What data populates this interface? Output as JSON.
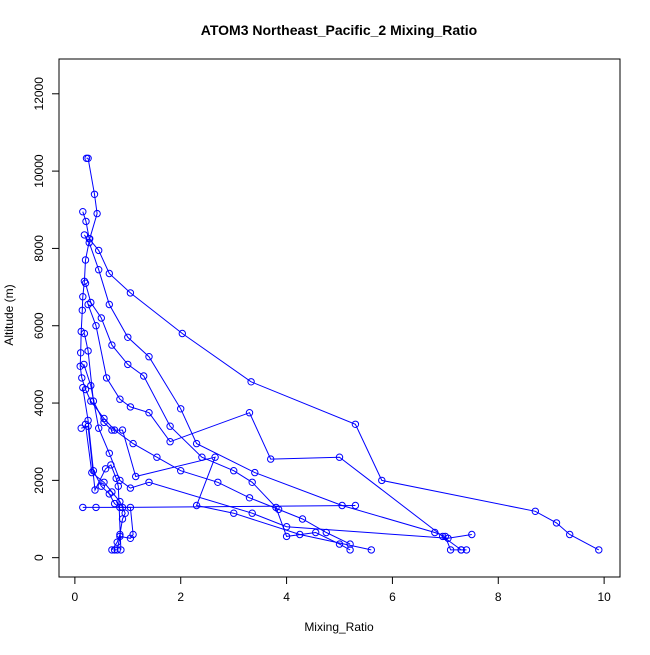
{
  "chart_data": {
    "type": "line",
    "title": "ATOM3 Northeast_Pacific_2 Mixing_Ratio",
    "xlabel": "Mixing_Ratio",
    "ylabel": "Altitude (m)",
    "xlim": [
      -0.3,
      10.3
    ],
    "ylim": [
      -500,
      12900
    ],
    "xticks": [
      "0",
      "2",
      "4",
      "6",
      "8",
      "10"
    ],
    "xtick_values": [
      0,
      2,
      4,
      6,
      8,
      10
    ],
    "yticks": [
      "0",
      "2000",
      "4000",
      "6000",
      "8000",
      "10000",
      "12000"
    ],
    "ytick_values": [
      0,
      2000,
      4000,
      6000,
      8000,
      10000,
      12000
    ],
    "grid": false,
    "legend": "none",
    "marker": "open-circle",
    "color": "#0000ff",
    "series": [
      {
        "x": [
          0.22,
          0.25,
          0.37,
          0.42,
          0.28,
          0.2,
          0.18,
          0.15,
          0.14,
          0.12,
          0.11,
          0.1,
          0.13,
          0.2,
          0.3,
          0.55,
          0.75,
          1.1,
          1.55,
          2.0,
          2.7,
          3.3,
          3.85,
          4.3,
          4.75,
          5.2
        ],
        "y": [
          10330,
          10330,
          9400,
          8900,
          8250,
          7700,
          7150,
          6750,
          6400,
          5850,
          5300,
          4950,
          4650,
          4350,
          4050,
          3600,
          3300,
          2950,
          2600,
          2250,
          1950,
          1550,
          1250,
          1000,
          650,
          350
        ]
      },
      {
        "x": [
          0.15,
          0.21,
          0.27,
          0.45,
          0.65,
          1.05,
          2.03,
          3.33,
          5.3,
          5.8,
          8.7,
          9.1,
          9.35,
          9.9
        ],
        "y": [
          8950,
          8700,
          8250,
          7950,
          7350,
          6850,
          5800,
          4550,
          3450,
          2000,
          1200,
          900,
          600,
          200
        ]
      },
      {
        "x": [
          0.18,
          0.27,
          0.45,
          0.65,
          1.0,
          1.4,
          2.0,
          2.3,
          3.4,
          5.05,
          6.8,
          7.0,
          7.1,
          7.3,
          7.4
        ],
        "y": [
          8350,
          8150,
          7450,
          6550,
          5700,
          5200,
          3850,
          2950,
          2200,
          1350,
          650,
          550,
          200,
          200,
          200
        ]
      },
      {
        "x": [
          0.2,
          0.3,
          0.5,
          0.7,
          1.0,
          1.3,
          1.8,
          2.4,
          3.0,
          3.35,
          3.8,
          4.0,
          4.55,
          5.0,
          5.2
        ],
        "y": [
          7100,
          6600,
          6200,
          5500,
          5000,
          4700,
          3400,
          2600,
          2250,
          1950,
          1300,
          550,
          650,
          350,
          200
        ]
      },
      {
        "x": [
          0.25,
          0.4,
          0.6,
          0.85,
          1.05,
          1.4,
          1.8,
          3.3,
          3.7,
          5.0,
          6.95,
          7.3
        ],
        "y": [
          6550,
          6000,
          4650,
          4100,
          3900,
          3750,
          3000,
          3750,
          2550,
          2600,
          550,
          200
        ]
      },
      {
        "x": [
          0.18,
          0.25,
          0.35,
          0.55,
          0.7,
          0.9,
          1.15,
          2.65,
          2.3,
          3.0,
          4.25,
          5.6
        ],
        "y": [
          5800,
          5350,
          4050,
          3500,
          3300,
          3300,
          2100,
          2600,
          1350,
          1150,
          600,
          200
        ]
      },
      {
        "x": [
          0.17,
          0.3,
          0.45,
          0.65,
          0.85,
          1.05,
          1.4,
          3.35,
          4.0,
          7.05,
          7.5
        ],
        "y": [
          5000,
          4450,
          3350,
          2700,
          2000,
          1800,
          1950,
          1150,
          800,
          500,
          600
        ]
      },
      {
        "x": [
          0.15,
          0.25,
          0.35,
          0.5,
          0.65,
          0.75,
          0.85,
          1.05,
          1.1,
          1.05,
          0.85,
          0.8,
          0.75
        ],
        "y": [
          4400,
          3550,
          2250,
          1850,
          1650,
          1400,
          1300,
          1300,
          600,
          500,
          550,
          200,
          200
        ]
      },
      {
        "x": [
          0.2,
          0.32,
          0.55,
          0.7,
          0.85,
          0.95,
          0.9,
          0.85,
          0.8,
          0.7
        ],
        "y": [
          3450,
          2200,
          1950,
          1700,
          1450,
          1150,
          1000,
          600,
          400,
          200
        ]
      },
      {
        "x": [
          0.12,
          0.25,
          0.38,
          0.58,
          0.68,
          0.78,
          0.82,
          0.87
        ],
        "y": [
          3350,
          3400,
          1750,
          2300,
          2400,
          2050,
          1850,
          200
        ]
      },
      {
        "x": [
          0.15,
          0.4,
          0.9,
          5.3
        ],
        "y": [
          1300,
          1300,
          1300,
          1350
        ]
      }
    ]
  }
}
